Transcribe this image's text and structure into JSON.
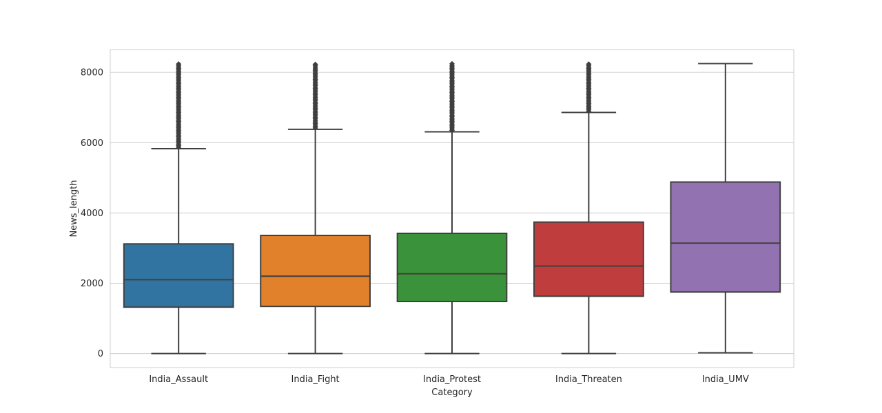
{
  "chart_data": {
    "type": "box",
    "title": "",
    "xlabel": "Category",
    "ylabel": "News_length",
    "ylim": [
      -400,
      8650
    ],
    "yticks": [
      0,
      2000,
      4000,
      6000,
      8000
    ],
    "grid": true,
    "categories": [
      "India_Assault",
      "India_Fight",
      "India_Protest",
      "India_Threaten",
      "India_UMV"
    ],
    "colors": [
      "#3274a1",
      "#e1812c",
      "#3a923a",
      "#c03d3e",
      "#9372b2"
    ],
    "boxes": [
      {
        "category": "India_Assault",
        "whisker_low": 0,
        "q1": 1320,
        "median": 2100,
        "q3": 3120,
        "whisker_high": 5830,
        "outliers_from": 5830,
        "outliers_to": 8250
      },
      {
        "category": "India_Fight",
        "whisker_low": 0,
        "q1": 1340,
        "median": 2200,
        "q3": 3360,
        "whisker_high": 6380,
        "outliers_from": 6380,
        "outliers_to": 8250
      },
      {
        "category": "India_Protest",
        "whisker_low": 0,
        "q1": 1480,
        "median": 2270,
        "q3": 3420,
        "whisker_high": 6310,
        "outliers_from": 6310,
        "outliers_to": 8250
      },
      {
        "category": "India_Threaten",
        "whisker_low": 0,
        "q1": 1630,
        "median": 2490,
        "q3": 3740,
        "whisker_high": 6860,
        "outliers_from": 6860,
        "outliers_to": 8250
      },
      {
        "category": "India_UMV",
        "whisker_low": 20,
        "q1": 1750,
        "median": 3140,
        "q3": 4880,
        "whisker_high": 8250,
        "outliers_from": null,
        "outliers_to": null
      }
    ]
  }
}
